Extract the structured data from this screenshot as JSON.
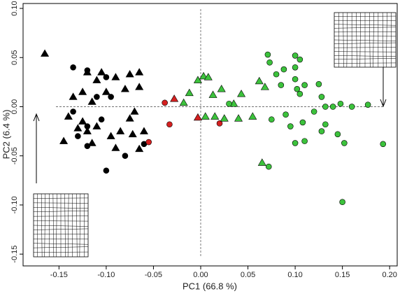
{
  "chart_data": {
    "type": "scatter",
    "xlabel": "PC1 (66.8 %)",
    "ylabel": "PC2 (6.4 %)",
    "xlim": [
      -0.188,
      0.208
    ],
    "ylim": [
      -0.162,
      0.105
    ],
    "xticks": [
      {
        "value": -0.15,
        "label": "-0.15"
      },
      {
        "value": -0.1,
        "label": "-0.10"
      },
      {
        "value": -0.05,
        "label": "-0.05"
      },
      {
        "value": 0,
        "label": "0.00"
      },
      {
        "value": 0.05,
        "label": "0.05"
      },
      {
        "value": 0.1,
        "label": "0.10"
      },
      {
        "value": 0.15,
        "label": "0.15"
      },
      {
        "value": 0.2,
        "label": "0.20"
      }
    ],
    "yticks": [
      {
        "value": -0.15,
        "label": "-0.15"
      },
      {
        "value": -0.1,
        "label": "-0.10"
      },
      {
        "value": -0.05,
        "label": "-0.05"
      },
      {
        "value": 0,
        "label": "0.00"
      },
      {
        "value": 0.05,
        "label": "0.05"
      },
      {
        "value": 0.1,
        "label": "0.10"
      }
    ],
    "series": [
      {
        "color": "#000000",
        "marker": "triangle",
        "x": [
          -0.165,
          -0.12,
          -0.105,
          -0.09,
          -0.075,
          -0.065,
          -0.11,
          -0.125,
          -0.135,
          -0.1,
          -0.08,
          -0.065,
          -0.115,
          -0.14,
          -0.125,
          -0.11,
          -0.095,
          -0.075,
          -0.06,
          -0.09,
          -0.072,
          -0.065,
          -0.145,
          -0.115,
          -0.085,
          -0.13,
          -0.07,
          -0.12
        ],
        "values": [
          0.054,
          0.035,
          0.035,
          0.03,
          0.033,
          0.035,
          0.027,
          0.015,
          0.01,
          0.015,
          0.018,
          0.02,
          0.005,
          -0.01,
          -0.015,
          -0.02,
          -0.03,
          -0.012,
          -0.025,
          -0.042,
          -0.028,
          -0.043,
          -0.035,
          -0.037,
          -0.025,
          -0.022,
          -0.005,
          -0.025
        ]
      },
      {
        "color": "#000000",
        "marker": "circle",
        "x": [
          -0.135,
          -0.12,
          -0.1,
          -0.11,
          -0.095,
          -0.135,
          -0.12,
          -0.105,
          -0.12,
          -0.08,
          -0.1,
          -0.06,
          -0.13
        ],
        "values": [
          0.04,
          0.037,
          0.03,
          0.01,
          0.01,
          -0.005,
          -0.02,
          -0.013,
          -0.04,
          -0.05,
          -0.065,
          -0.038,
          -0.03
        ]
      },
      {
        "color": "#d42020",
        "marker": "circle",
        "x": [
          -0.038,
          -0.033,
          0.02,
          -0.055
        ],
        "values": [
          0.004,
          -0.018,
          -0.017,
          -0.036
        ]
      },
      {
        "color": "#d42020",
        "marker": "triangle",
        "x": [
          -0.028,
          -0.003
        ],
        "values": [
          0.008,
          -0.011
        ]
      },
      {
        "color": "#3cc23c",
        "marker": "triangle",
        "x": [
          -0.012,
          -0.018,
          0.003,
          0.008,
          0.022,
          0.013,
          0.035,
          0.043,
          0.062,
          0.068,
          0.005,
          0.015,
          0.025,
          0.04,
          0.055,
          0.065,
          -0.003
        ],
        "values": [
          0.014,
          0.004,
          0.031,
          0.03,
          0.018,
          0.012,
          0.003,
          0.013,
          0.026,
          0.02,
          -0.01,
          -0.01,
          -0.012,
          -0.012,
          -0.01,
          -0.057,
          0.027
        ]
      },
      {
        "color": "#3cc23c",
        "marker": "circle",
        "x": [
          0.071,
          0.073,
          0.08,
          0.088,
          0.1,
          0.105,
          0.1,
          0.085,
          0.1,
          0.102,
          0.105,
          0.11,
          0.125,
          0.128,
          0.14,
          0.132,
          0.148,
          0.12,
          0.16,
          0.177,
          0.03,
          0.075,
          0.09,
          0.095,
          0.108,
          0.11,
          0.128,
          0.132,
          0.145,
          0.152,
          0.193,
          0.072,
          0.15,
          0.1
        ],
        "values": [
          0.053,
          0.045,
          0.033,
          0.038,
          0.052,
          0.048,
          0.04,
          0.022,
          0.028,
          0.018,
          0.013,
          0.022,
          0.023,
          0.01,
          0.0,
          0.0,
          0.003,
          -0.005,
          0.0,
          0.002,
          0.003,
          -0.013,
          -0.008,
          -0.02,
          -0.016,
          -0.035,
          -0.025,
          -0.018,
          -0.028,
          -0.037,
          -0.038,
          -0.061,
          -0.097,
          -0.037
        ]
      }
    ]
  }
}
